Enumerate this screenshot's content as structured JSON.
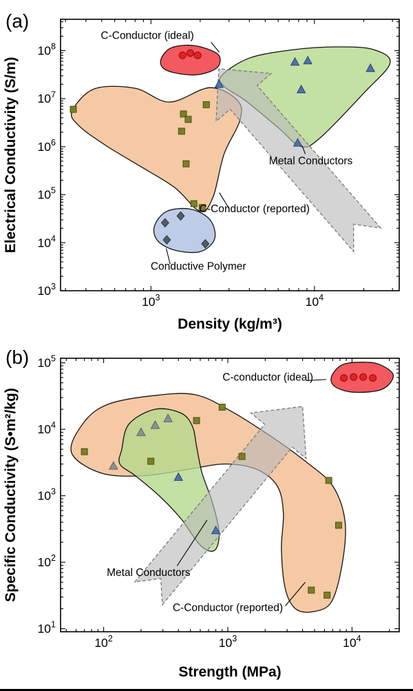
{
  "figure": {
    "description": "Two-panel log-log material property chart",
    "bottom_border_color": "#000000"
  },
  "chart_data": [
    {
      "id": "panel-a",
      "panel_label": "(a)",
      "type": "scatter",
      "x_scale": "log",
      "y_scale": "log",
      "xlabel": "Density (kg/m³)",
      "ylabel": "Electrical Conductivity (S/m)",
      "x_range": [
        280,
        33000
      ],
      "y_range": [
        1000,
        450000000
      ],
      "x_tick_exponents": [
        3,
        4
      ],
      "y_tick_exponents": [
        3,
        4,
        5,
        6,
        7,
        8
      ],
      "grid": false,
      "regions": [
        {
          "name": "c-conductor-reported",
          "label": "C-Conductor (reported)",
          "fill": "#f3bc8d",
          "opacity": 0.8,
          "points": [
            [
              330,
              5500000
            ],
            [
              450,
              16000000
            ],
            [
              800,
              16500000
            ],
            [
              1300,
              8500000
            ],
            [
              2300,
              17000000
            ],
            [
              3400,
              9000000
            ],
            [
              3500,
              3500000
            ],
            [
              2800,
              700000
            ],
            [
              2400,
              90000
            ],
            [
              2000,
              45000
            ],
            [
              1400,
              140000
            ],
            [
              850,
              400000
            ],
            [
              520,
              1100000
            ],
            [
              360,
              2800000
            ]
          ]
        },
        {
          "name": "conductive-polymer",
          "label": "Conductive Polymer",
          "fill": "#b7c6e4",
          "opacity": 0.9,
          "points": [
            [
              1050,
              22000
            ],
            [
              1250,
              45000
            ],
            [
              1750,
              50000
            ],
            [
              2300,
              30000
            ],
            [
              2450,
              12000
            ],
            [
              2000,
              6500
            ],
            [
              1400,
              7000
            ],
            [
              1100,
              11000
            ]
          ]
        },
        {
          "name": "metal-conductors",
          "label": "Metal Conductors",
          "fill": "#b4d98b",
          "opacity": 0.8,
          "points": [
            [
              2700,
              30000000
            ],
            [
              4000,
              70000000
            ],
            [
              7500,
              105000000
            ],
            [
              14000,
              120000000
            ],
            [
              23000,
              105000000
            ],
            [
              29000,
              55000000
            ],
            [
              20000,
              13000000
            ],
            [
              11000,
              1600000
            ],
            [
              8300,
              1000000
            ],
            [
              6000,
              2500000
            ],
            [
              3800,
              9000000
            ],
            [
              2800,
              18000000
            ]
          ]
        },
        {
          "name": "c-conductor-ideal",
          "label": "C-Conductor (ideal)",
          "fill": "#f25056",
          "opacity": 0.95,
          "above_arrow": true,
          "points": [
            [
              1150,
              65000000
            ],
            [
              1300,
              110000000
            ],
            [
              1650,
              130000000
            ],
            [
              2100,
              115000000
            ],
            [
              2600,
              80000000
            ],
            [
              2550,
              45000000
            ],
            [
              2000,
              32000000
            ],
            [
              1500,
              33000000
            ],
            [
              1200,
              42000000
            ]
          ]
        }
      ],
      "arrow": {
        "head": [
          2600,
          42000000
        ],
        "tail": [
          21000,
          11500
        ],
        "shaft_halfwidth": 26,
        "head_halfwidth": 53,
        "head_length": 55,
        "notch": 30,
        "fill": "#b9b9b9",
        "opacity": 0.62,
        "stroke": "#787878"
      },
      "series": [
        {
          "name": "ideal-c-conductor",
          "marker": "circle",
          "color": "#e8201f",
          "edge": "#7a0d0d",
          "points": [
            [
              1560,
              80000000
            ],
            [
              1740,
              89000000
            ],
            [
              1930,
              80000000
            ]
          ]
        },
        {
          "name": "metal-conductors",
          "marker": "triangle",
          "color": "#4e73ab",
          "edge": "#223d66",
          "points": [
            [
              2610,
              20000000
            ],
            [
              7600,
              58000000
            ],
            [
              9100,
              62000000
            ],
            [
              8300,
              15500000
            ],
            [
              22000,
              43000000
            ],
            [
              7900,
              1200000
            ]
          ]
        },
        {
          "name": "reported-c-conductor",
          "marker": "square",
          "color": "#7b8026",
          "edge": "#43470f",
          "points": [
            [
              335,
              6000000
            ],
            [
              1580,
              4800000
            ],
            [
              1690,
              3700000
            ],
            [
              1540,
              2100000
            ],
            [
              1640,
              440000
            ],
            [
              2180,
              7500000
            ],
            [
              1830,
              65000
            ],
            [
              2060,
              54000
            ]
          ]
        },
        {
          "name": "conductive-polymer",
          "marker": "diamond",
          "color": "#515c68",
          "edge": "#272e36",
          "points": [
            [
              1220,
              26000
            ],
            [
              1520,
              36000
            ],
            [
              1250,
              11500
            ],
            [
              2150,
              9500
            ]
          ]
        }
      ],
      "annotations": [
        {
          "name": "label-c-conductor-ideal",
          "text": "C-Conductor (ideal)",
          "x": 950,
          "y": 175000000,
          "line": [
            [
              2330,
              150000000
            ],
            [
              2620,
              92000000
            ]
          ]
        },
        {
          "name": "label-metal-conductors",
          "text": "Metal Conductors",
          "x": 9500,
          "y": 430000,
          "line": [
            [
              8800,
              700000
            ],
            [
              8400,
              1050000
            ]
          ]
        },
        {
          "name": "label-c-conductor-reported",
          "text": "C-Conductor (reported)",
          "x": 4300,
          "y": 43000,
          "line": [
            [
              3000,
              52000
            ],
            [
              2620,
              110000
            ]
          ]
        },
        {
          "name": "label-conductive-polymer",
          "text": "Conductive Polymer",
          "x": 1950,
          "y": 2750,
          "line": [
            [
              1310,
              3600
            ],
            [
              1240,
              7600
            ]
          ]
        }
      ]
    },
    {
      "id": "panel-b",
      "panel_label": "(b)",
      "type": "scatter",
      "x_scale": "log",
      "y_scale": "log",
      "xlabel": "Strength (MPa)",
      "ylabel": "Specific Conductivity (S•m²/kg)",
      "x_range": [
        45,
        24000
      ],
      "y_range": [
        9,
        117000
      ],
      "x_tick_exponents": [
        2,
        3,
        4
      ],
      "y_tick_exponents": [
        1,
        2,
        3,
        4,
        5
      ],
      "grid": false,
      "regions": [
        {
          "name": "c-conductor-reported",
          "label": "C-Conductor (reported)",
          "fill": "#f3bc8d",
          "opacity": 0.8,
          "points": [
            [
              55,
              4500
            ],
            [
              70,
              13000
            ],
            [
              110,
              24000
            ],
            [
              250,
              32000
            ],
            [
              550,
              33000
            ],
            [
              1100,
              18000
            ],
            [
              2300,
              7500
            ],
            [
              4300,
              3200
            ],
            [
              7000,
              1400
            ],
            [
              8800,
              400
            ],
            [
              8300,
              90
            ],
            [
              6800,
              25
            ],
            [
              4800,
              18
            ],
            [
              3500,
              20
            ],
            [
              2900,
              40
            ],
            [
              2700,
              160
            ],
            [
              2800,
              550
            ],
            [
              2500,
              1400
            ],
            [
              1700,
              2500
            ],
            [
              950,
              3000
            ],
            [
              480,
              2500
            ],
            [
              210,
              2000
            ],
            [
              95,
              2200
            ]
          ]
        },
        {
          "name": "metal-conductors",
          "label": "Metal Conductors",
          "fill": "#b4d98b",
          "opacity": 0.8,
          "points": [
            [
              140,
              5000
            ],
            [
              160,
              12000
            ],
            [
              260,
              20000
            ],
            [
              420,
              17500
            ],
            [
              520,
              11000
            ],
            [
              560,
              5500
            ],
            [
              620,
              2200
            ],
            [
              750,
              800
            ],
            [
              850,
              280
            ],
            [
              780,
              150
            ],
            [
              600,
              180
            ],
            [
              420,
              450
            ],
            [
              280,
              1000
            ],
            [
              180,
              2000
            ],
            [
              135,
              3000
            ]
          ]
        },
        {
          "name": "c-conductor-ideal",
          "label": "C-conductor (ideal)",
          "fill": "#f25056",
          "opacity": 0.95,
          "above_arrow": true,
          "points": [
            [
              6800,
              60000
            ],
            [
              8200,
              92000
            ],
            [
              11500,
              102000
            ],
            [
              16500,
              95000
            ],
            [
              21500,
              65000
            ],
            [
              17500,
              40000
            ],
            [
              10500,
              36000
            ],
            [
              7400,
              43000
            ]
          ]
        }
      ],
      "arrow": {
        "head": [
          4000,
          22000
        ],
        "tail": [
          230,
          34
        ],
        "shaft_halfwidth": 26,
        "head_halfwidth": 52,
        "head_length": 55,
        "notch": 28,
        "fill": "#b9b9b9",
        "opacity": 0.62,
        "stroke": "#787878"
      },
      "series": [
        {
          "name": "ideal-c-conductor",
          "marker": "circle",
          "color": "#e8201f",
          "edge": "#7a0d0d",
          "points": [
            [
              8600,
              59000
            ],
            [
              10300,
              61000
            ],
            [
              12300,
              61000
            ],
            [
              14700,
              59000
            ]
          ]
        },
        {
          "name": "metal-conductors-gray",
          "marker": "triangle",
          "color": "#8c9196",
          "edge": "#54585d",
          "points": [
            [
              200,
              9000
            ],
            [
              260,
              11500
            ],
            [
              330,
              14500
            ],
            [
              120,
              2800
            ]
          ]
        },
        {
          "name": "metal-conductors-blue",
          "marker": "triangle",
          "color": "#4e73ab",
          "edge": "#223d66",
          "points": [
            [
              400,
              1900
            ],
            [
              800,
              300
            ]
          ]
        },
        {
          "name": "reported-c-conductor",
          "marker": "square",
          "color": "#7b8026",
          "edge": "#43470f",
          "points": [
            [
              70,
              4600
            ],
            [
              240,
              3300
            ],
            [
              560,
              13500
            ],
            [
              900,
              21500
            ],
            [
              1300,
              3900
            ],
            [
              6500,
              1700
            ],
            [
              7800,
              360
            ],
            [
              4700,
              38
            ],
            [
              6300,
              32
            ]
          ]
        }
      ],
      "annotations": [
        {
          "name": "label-c-conductor-ideal",
          "text": "C-conductor (ideal)",
          "x": 2100,
          "y": 54000,
          "line": [
            [
              4300,
              54000
            ],
            [
              6200,
              56000
            ]
          ]
        },
        {
          "name": "label-metal-conductors",
          "text": "Metal Conductors",
          "x": 230,
          "y": 62,
          "line": [
            [
              390,
              88
            ],
            [
              680,
              430
            ]
          ]
        },
        {
          "name": "label-c-conductor-reported",
          "text": "C-Conductor (reported)",
          "x": 1000,
          "y": 18.5,
          "line": [
            [
              2900,
              22
            ],
            [
              4200,
              50
            ]
          ]
        }
      ]
    }
  ]
}
